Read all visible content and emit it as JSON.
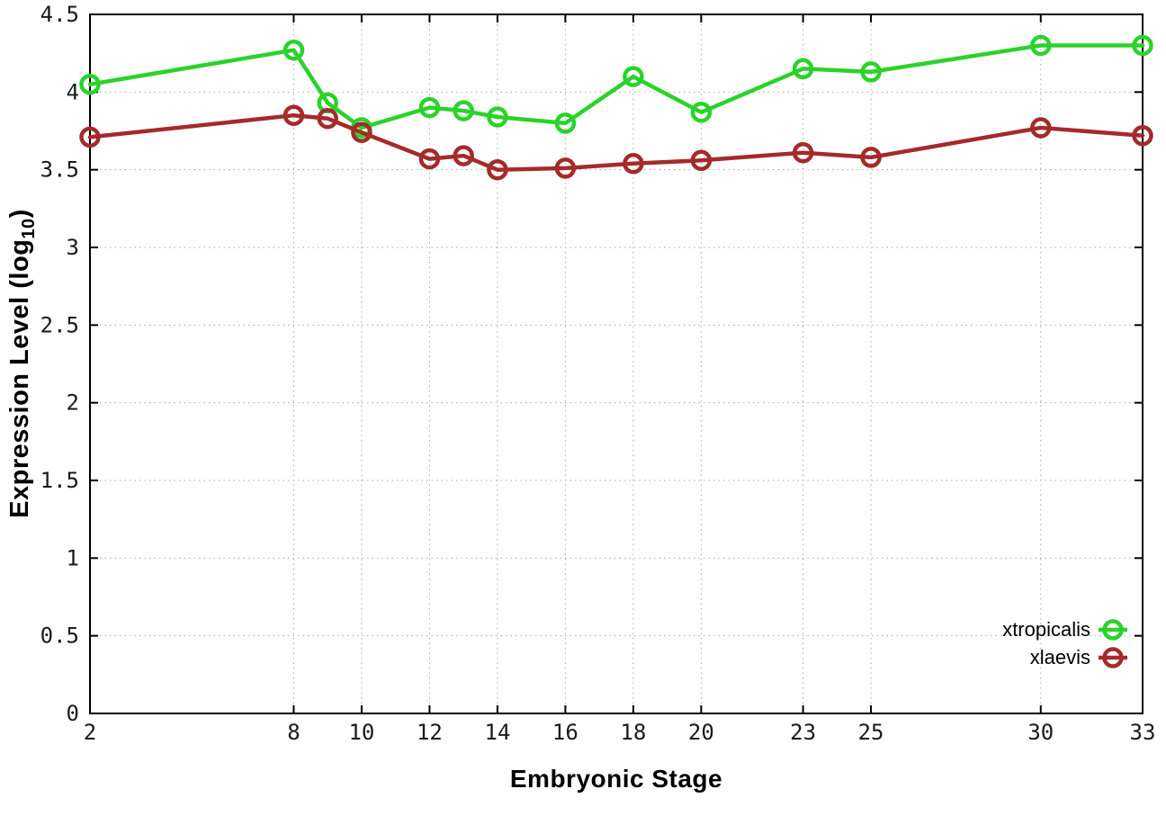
{
  "chart_data": {
    "type": "line",
    "title": "",
    "xlabel": "Embryonic Stage",
    "ylabel": {
      "prefix": "Expression Level (log",
      "sub": "10",
      "suffix": ")"
    },
    "xlim": [
      2,
      33
    ],
    "ylim": [
      0,
      4.5
    ],
    "x_ticks": [
      2,
      8,
      10,
      12,
      14,
      16,
      18,
      20,
      23,
      25,
      30,
      33
    ],
    "x_tick_labels": [
      "2",
      "8",
      "10",
      "12",
      "14",
      "16",
      "18",
      "20",
      "23",
      "25",
      "30",
      "33"
    ],
    "y_ticks": [
      0,
      0.5,
      1,
      1.5,
      2,
      2.5,
      3,
      3.5,
      4,
      4.5
    ],
    "y_tick_labels": [
      "0",
      "0.5",
      "1",
      "1.5",
      "2",
      "2.5",
      "3",
      "3.5",
      "4",
      "4.5"
    ],
    "grid": true,
    "legend_position": "bottom-right",
    "x": [
      2,
      8,
      9,
      10,
      12,
      13,
      14,
      16,
      18,
      20,
      23,
      25,
      30,
      33
    ],
    "series": [
      {
        "name": "xtropicalis",
        "color": "#2bd22b",
        "values": [
          4.05,
          4.27,
          3.93,
          3.77,
          3.9,
          3.88,
          3.84,
          3.8,
          4.1,
          3.87,
          4.15,
          4.13,
          4.3,
          4.3
        ]
      },
      {
        "name": "xlaevis",
        "color": "#a52a2a",
        "values": [
          3.71,
          3.85,
          3.83,
          3.74,
          3.57,
          3.59,
          3.5,
          3.51,
          3.54,
          3.56,
          3.61,
          3.58,
          3.77,
          3.72
        ]
      }
    ],
    "styles": {
      "grid_color": "#aaaaaa",
      "axis_color": "#000000",
      "tick_label_color": "#1a1a1a",
      "background": "#ffffff"
    }
  }
}
